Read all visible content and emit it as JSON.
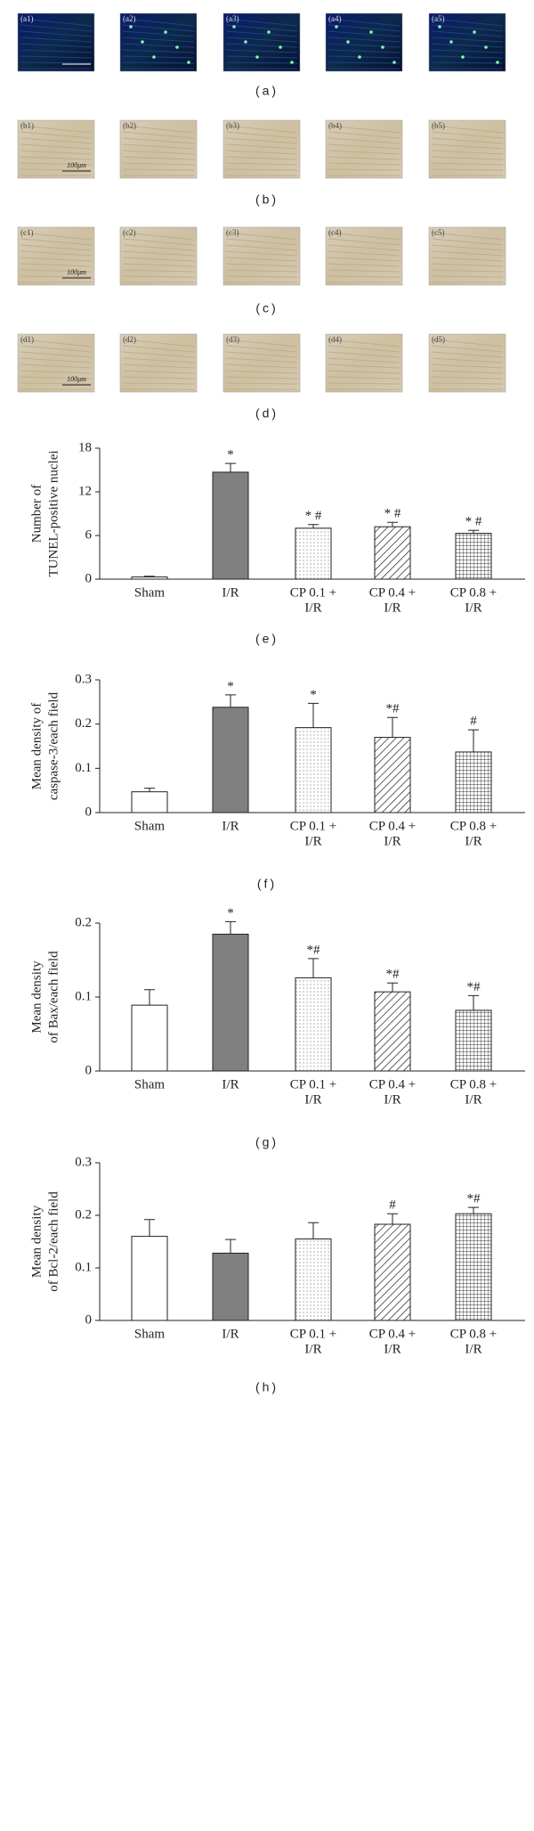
{
  "panels": [
    {
      "caption": "(a)",
      "labels": [
        "(a1)",
        "(a2)",
        "(a3)",
        "(a4)",
        "(a5)"
      ]
    },
    {
      "caption": "(b)",
      "labels": [
        "(b1)",
        "(b2)",
        "(b3)",
        "(b4)",
        "(b5)"
      ],
      "scale_label": "100μm"
    },
    {
      "caption": "(c)",
      "labels": [
        "(c1)",
        "(c2)",
        "(c3)",
        "(c4)",
        "(c5)"
      ],
      "scale_label": "100μm"
    },
    {
      "caption": "(d)",
      "labels": [
        "(d1)",
        "(d2)",
        "(d3)",
        "(d4)",
        "(d5)"
      ],
      "scale_label": "100μm"
    }
  ],
  "chart_data": [
    {
      "type": "bar",
      "caption": "(e)",
      "ylabel": [
        "Number of",
        "TUNEL-positive nuclei"
      ],
      "categories": [
        [
          "Sham"
        ],
        [
          "I/R"
        ],
        [
          "CP 0.1 +",
          "I/R"
        ],
        [
          "CP 0.4 +",
          "I/R"
        ],
        [
          "CP 0.8 +",
          "I/R"
        ]
      ],
      "values": [
        0.3,
        14.7,
        7.0,
        7.2,
        6.3
      ],
      "errors": [
        0.1,
        1.2,
        0.5,
        0.6,
        0.4
      ],
      "annotations": [
        null,
        "*",
        "* #",
        "* #",
        "* #"
      ],
      "colors": [
        "#ffffff",
        "#808080",
        "#ffffff",
        "#ffffff",
        "#ffffff"
      ],
      "hatches": [
        null,
        null,
        "dots",
        "diagonal",
        "grid"
      ],
      "ylim": [
        0,
        18
      ],
      "yticks": [
        0,
        6,
        12,
        18
      ]
    },
    {
      "type": "bar",
      "caption": "(f)",
      "ylabel": [
        "Mean density of",
        "caspase-3/each field"
      ],
      "categories": [
        [
          "Sham"
        ],
        [
          "I/R"
        ],
        [
          "CP 0.1 +",
          "I/R"
        ],
        [
          "CP 0.4 +",
          "I/R"
        ],
        [
          "CP 0.8 +",
          "I/R"
        ]
      ],
      "values": [
        0.047,
        0.238,
        0.192,
        0.17,
        0.137
      ],
      "errors": [
        0.008,
        0.028,
        0.055,
        0.045,
        0.05
      ],
      "annotations": [
        null,
        "*",
        "*",
        "*#",
        "#"
      ],
      "colors": [
        "#ffffff",
        "#808080",
        "#ffffff",
        "#ffffff",
        "#ffffff"
      ],
      "hatches": [
        null,
        null,
        "dots",
        "diagonal",
        "grid"
      ],
      "ylim": [
        0,
        0.3
      ],
      "yticks": [
        0,
        0.1,
        0.2,
        0.3
      ]
    },
    {
      "type": "bar",
      "caption": "(g)",
      "ylabel": [
        "Mean density",
        "of Bax/each field"
      ],
      "categories": [
        [
          "Sham"
        ],
        [
          "I/R"
        ],
        [
          "CP 0.1 +",
          "I/R"
        ],
        [
          "CP 0.4 +",
          "I/R"
        ],
        [
          "CP 0.8 +",
          "I/R"
        ]
      ],
      "values": [
        0.089,
        0.185,
        0.126,
        0.107,
        0.082
      ],
      "errors": [
        0.021,
        0.017,
        0.026,
        0.012,
        0.02
      ],
      "annotations": [
        null,
        "*",
        "*#",
        "*#",
        "*#"
      ],
      "colors": [
        "#ffffff",
        "#808080",
        "#ffffff",
        "#ffffff",
        "#ffffff"
      ],
      "hatches": [
        null,
        null,
        "dots",
        "diagonal",
        "grid"
      ],
      "ylim": [
        0,
        0.2
      ],
      "yticks": [
        0,
        0.1,
        0.2
      ]
    },
    {
      "type": "bar",
      "caption": "(h)",
      "ylabel": [
        "Mean density",
        "of Bcl-2/each field"
      ],
      "categories": [
        [
          "Sham"
        ],
        [
          "I/R"
        ],
        [
          "CP 0.1 +",
          "I/R"
        ],
        [
          "CP 0.4 +",
          "I/R"
        ],
        [
          "CP 0.8 +",
          "I/R"
        ]
      ],
      "values": [
        0.16,
        0.128,
        0.155,
        0.183,
        0.203
      ],
      "errors": [
        0.032,
        0.026,
        0.031,
        0.02,
        0.012
      ],
      "annotations": [
        null,
        null,
        null,
        "#",
        "*#"
      ],
      "colors": [
        "#ffffff",
        "#808080",
        "#ffffff",
        "#ffffff",
        "#ffffff"
      ],
      "hatches": [
        null,
        null,
        "dots",
        "diagonal",
        "grid"
      ],
      "ylim": [
        0,
        0.3
      ],
      "yticks": [
        0,
        0.1,
        0.2,
        0.3
      ]
    }
  ]
}
